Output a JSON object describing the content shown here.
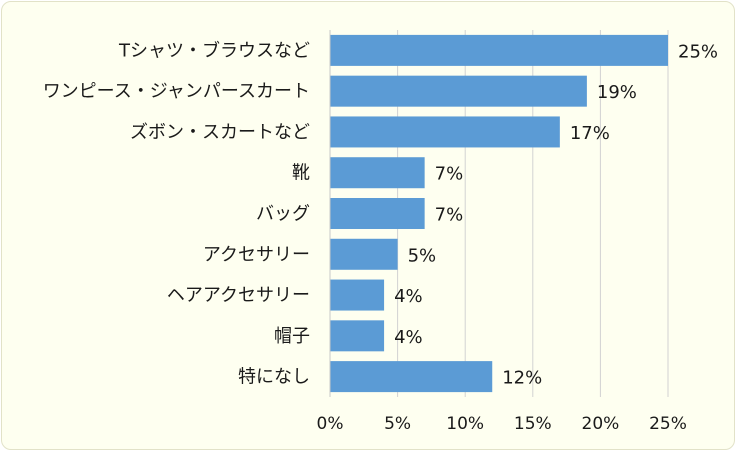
{
  "chart_data": {
    "type": "bar",
    "orientation": "horizontal",
    "categories": [
      "Tシャツ・ブラウスなど",
      "ワンピース・ジャンパースカート",
      "ズボン・スカートなど",
      "靴",
      "バッグ",
      "アクセサリー",
      "ヘアアクセサリー",
      "帽子",
      "特になし"
    ],
    "values": [
      25,
      19,
      17,
      7,
      7,
      5,
      4,
      4,
      12
    ],
    "data_labels": [
      "25%",
      "19%",
      "17%",
      "7%",
      "7%",
      "5%",
      "4%",
      "4%",
      "12%"
    ],
    "x_ticks": [
      "0%",
      "5%",
      "10%",
      "15%",
      "20%",
      "25%"
    ],
    "xlim": [
      0,
      25
    ],
    "grid": true,
    "bar_color": "#5b9bd5",
    "background_color": "#fefff0"
  }
}
